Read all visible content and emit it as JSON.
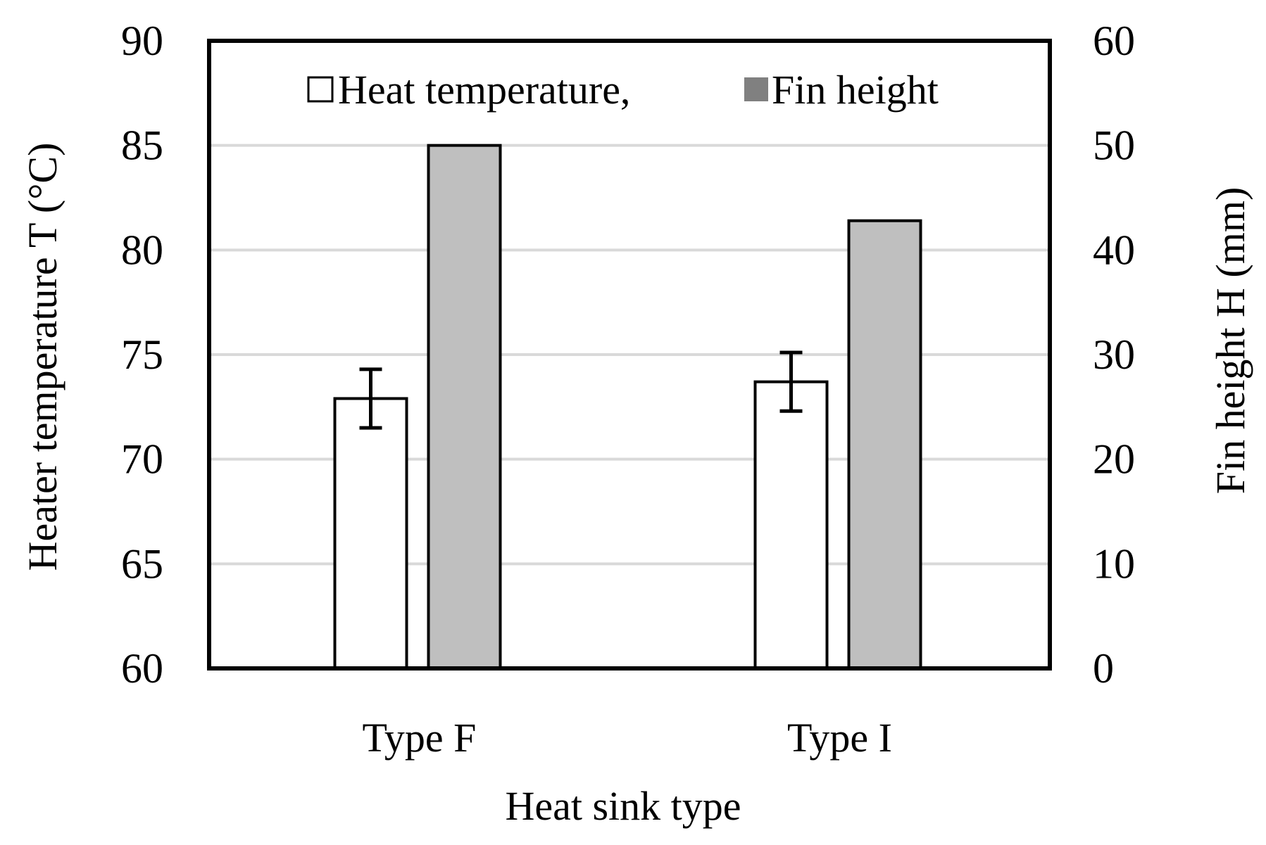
{
  "chart_data": {
    "type": "bar",
    "categories": [
      "Type F",
      "Type I"
    ],
    "xlabel": "Heat sink type",
    "ylabel_left": "Heater temperature T (°C)",
    "ylabel_right": "Fin height H (mm)",
    "ylim_left": [
      60,
      90
    ],
    "ylim_right": [
      0,
      60
    ],
    "yticks_left": [
      "60",
      "65",
      "70",
      "75",
      "80",
      "85",
      "90"
    ],
    "yticks_right": [
      "0",
      "10",
      "20",
      "30",
      "40",
      "50",
      "60"
    ],
    "grid": true,
    "legend_position": "top",
    "series": [
      {
        "name": "Heat temperature,",
        "axis": "left",
        "color": "#ffffff",
        "values": [
          72.9,
          73.7
        ],
        "error": [
          1.4,
          1.4
        ]
      },
      {
        "name": "Fin height",
        "axis": "right",
        "color": "#bfbfbf",
        "legend_color": "#808080",
        "values": [
          50,
          42.8
        ]
      }
    ]
  }
}
